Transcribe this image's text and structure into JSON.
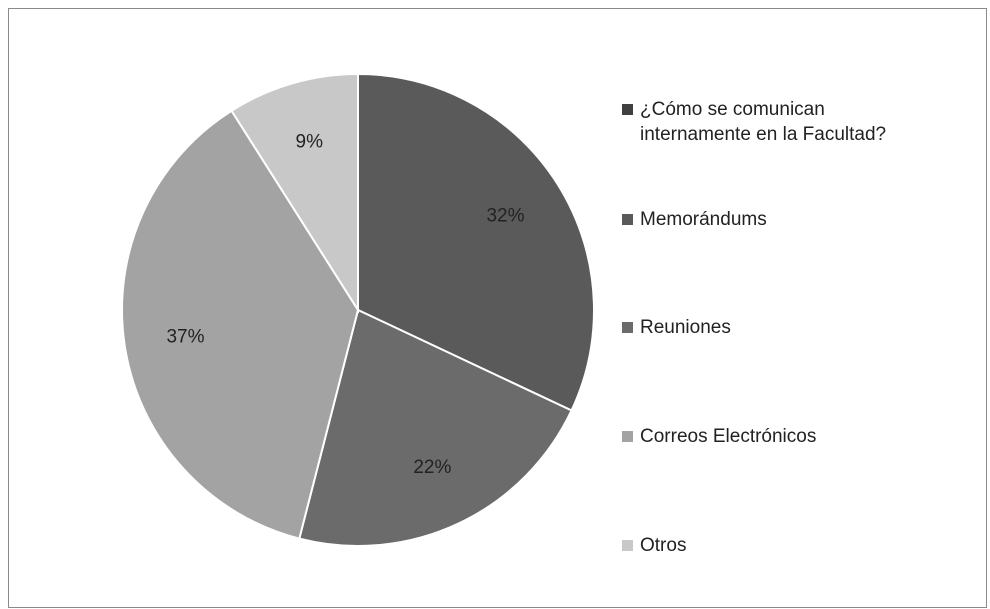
{
  "chart_data": {
    "type": "pie",
    "title": "¿Cómo se comunican internamente en la Facultad?",
    "title_color": "#404040",
    "categories": [
      "Memorándums",
      "Reuniones",
      "Correos Electrónicos",
      "Otros"
    ],
    "values": [
      32,
      22,
      37,
      9
    ],
    "value_labels": [
      "32%",
      "22%",
      "37%",
      "9%"
    ],
    "colors": [
      "#5a5a5a",
      "#6b6b6b",
      "#a3a3a3",
      "#c8c8c8"
    ],
    "legend": "right"
  }
}
